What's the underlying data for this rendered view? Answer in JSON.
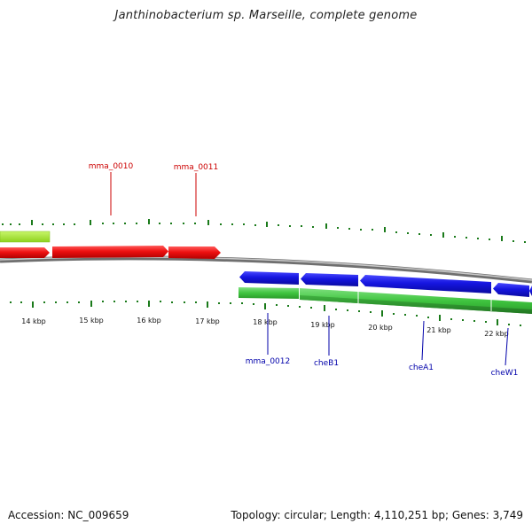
{
  "title": "Janthinobacterium sp. Marseille, complete genome",
  "footer": {
    "accession": "Accession: NC_009659",
    "stats": "Topology: circular; Length: 4,110,251 bp; Genes: 3,749"
  },
  "scale": {
    "ticks": [
      {
        "label": "14 kbp"
      },
      {
        "label": "15 kbp"
      },
      {
        "label": "16 kbp"
      },
      {
        "label": "17 kbp"
      },
      {
        "label": "18 kbp"
      },
      {
        "label": "19 kbp"
      },
      {
        "label": "20 kbp"
      },
      {
        "label": "21 kbp"
      },
      {
        "label": "22 kbp"
      }
    ]
  },
  "genes": {
    "top": [
      {
        "name": "mma_0010"
      },
      {
        "name": "mma_0011"
      }
    ],
    "bottom": [
      {
        "name": "mma_0012"
      },
      {
        "name": "cheB1"
      },
      {
        "name": "cheA1"
      },
      {
        "name": "cheW1"
      }
    ]
  },
  "colors": {
    "forward_gene": "#ee1111",
    "reverse_gene": "#1111dd",
    "cds_light": "#a8e83a",
    "cds_green": "#44cc44",
    "tick": "#1a7a1a",
    "backbone": "#8a8a8a",
    "top_label": "#cc0000",
    "bottom_label": "#0000aa"
  }
}
